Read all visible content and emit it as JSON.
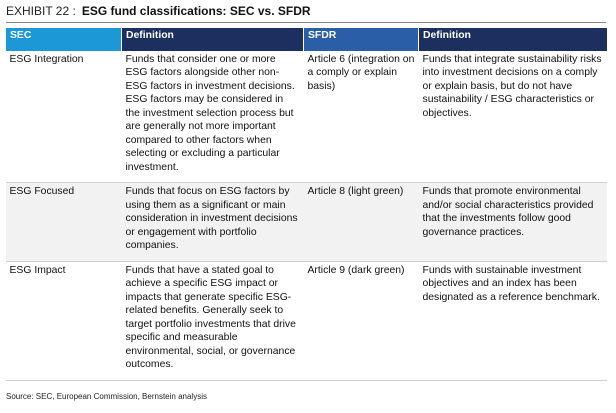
{
  "header": {
    "label": "EXHIBIT 22 :",
    "title": "ESG fund classifications: SEC vs. SFDR"
  },
  "table": {
    "columns": [
      "SEC",
      "Definition",
      "SFDR",
      "Definition"
    ],
    "rows": [
      [
        "ESG Integration",
        "Funds that consider one or more ESG factors alongside other non-ESG factors in investment decisions. ESG factors may be considered in the investment selection process but are generally not more important compared to other factors when selecting or excluding a particular investment.",
        "Article 6 (integration on a comply or explain basis)",
        "Funds that integrate sustainability risks into investment decisions on a comply or explain basis, but do not have sustainability / ESG characteristics or objectives."
      ],
      [
        "ESG Focused",
        "Funds that focus on ESG factors by using them as a significant or main consideration in investment decisions or engagement with portfolio companies.",
        "Article 8 (light green)",
        "Funds that promote environmental and/or social characteristics provided that the investments follow good governance practices."
      ],
      [
        "ESG Impact",
        "Funds that have a stated goal to achieve a specific ESG impact or impacts that generate specific ESG-related benefits. Generally seek to target portfolio investments that drive specific and measurable environmental, social, or governance outcomes.",
        "Article 9 (dark green)",
        "Funds with sustainable investment objectives and an index has been designated as a reference benchmark."
      ]
    ]
  },
  "source": "Source: SEC, European Commission, Bernstein analysis"
}
